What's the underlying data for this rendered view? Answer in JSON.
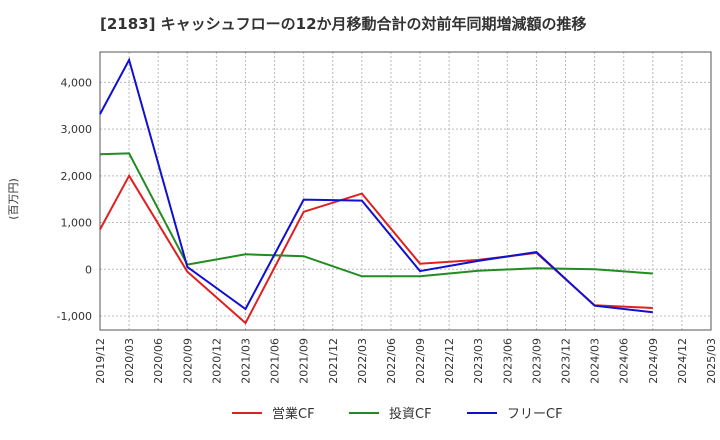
{
  "chart_data": {
    "type": "line",
    "title": "[2183]  キャッシュフローの12か月移動合計の対前年同期増減額の推移",
    "ylabel": "(百万円)",
    "xlabel": "",
    "ylim": [
      -1300,
      4650
    ],
    "yticks": [
      4000,
      3000,
      2000,
      1000,
      0,
      -1000
    ],
    "ytick_labels": [
      "4,000",
      "3,000",
      "2,000",
      "1,000",
      "0",
      "-1,000"
    ],
    "x": [
      "2019/12",
      "2020/03",
      "2020/06",
      "2020/09",
      "2020/12",
      "2021/03",
      "2021/06",
      "2021/09",
      "2021/12",
      "2022/03",
      "2022/06",
      "2022/09",
      "2022/12",
      "2023/03",
      "2023/06",
      "2023/09",
      "2023/12",
      "2024/03",
      "2024/06",
      "2024/09",
      "2024/12",
      "2025/03"
    ],
    "grid": true,
    "legend": "bottom",
    "series": [
      {
        "name": "営業CF",
        "color": "#e02020",
        "values": [
          850,
          2000,
          null,
          -50,
          null,
          -1150,
          null,
          1230,
          null,
          1620,
          null,
          120,
          null,
          200,
          null,
          350,
          null,
          -770,
          null,
          -830,
          null,
          null
        ]
      },
      {
        "name": "投資CF",
        "color": "#228b22",
        "values": [
          2460,
          2480,
          null,
          100,
          null,
          320,
          null,
          280,
          null,
          -150,
          null,
          -150,
          null,
          -30,
          null,
          20,
          null,
          0,
          null,
          -90,
          null,
          null
        ]
      },
      {
        "name": "フリーCF",
        "color": "#1010d0",
        "values": [
          3320,
          4480,
          null,
          50,
          null,
          -850,
          null,
          1490,
          null,
          1470,
          null,
          -40,
          null,
          180,
          null,
          370,
          null,
          -780,
          null,
          -920,
          null,
          null
        ]
      }
    ]
  }
}
